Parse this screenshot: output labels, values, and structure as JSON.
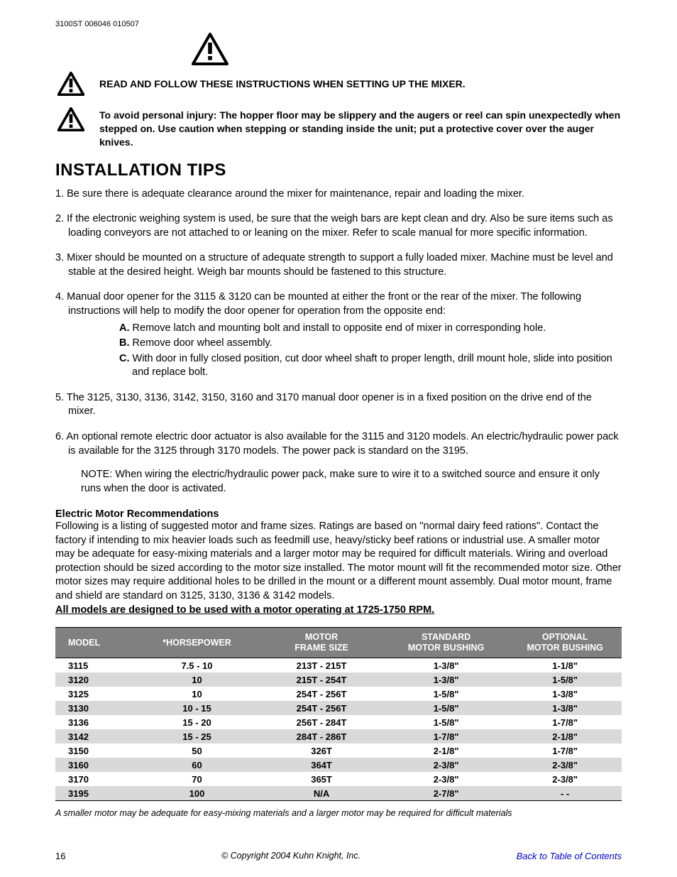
{
  "doc_code": "3100ST 006046 010507",
  "warnings": {
    "line1": "READ AND FOLLOW THESE INSTRUCTIONS WHEN SETTING UP THE MIXER.",
    "line2": "To avoid personal injury: The hopper floor may be slippery and the augers or reel can spin unexpectedly when stepped on. Use caution when stepping or standing inside the unit; put a protective cover over the auger knives."
  },
  "section_title": "INSTALLATION  TIPS",
  "tips": {
    "t1": "1. Be sure there is adequate clearance around the mixer for maintenance, repair and loading the mixer.",
    "t2": "2. If the electronic weighing system is used, be sure that the weigh bars are kept clean and dry. Also be   sure items such as loading conveyors are not attached to or leaning on the mixer. Refer to      scale manual for more specific information.",
    "t3": "3. Mixer should be mounted on a structure of adequate strength to support a fully loaded mixer. Machine must be level and stable at the desired height. Weigh bar mounts should be fastened to this structure.",
    "t4": "4. Manual door opener for the 3115 & 3120 can be mounted at either the front or the rear of  the mixer. The following instructions will help to modify the door opener for operation from the  opposite end:",
    "t4a_label": "A.",
    "t4a": " Remove latch and mounting bolt and install to opposite end of mixer in corresponding hole.",
    "t4b_label": "B.",
    "t4b": " Remove door wheel assembly.",
    "t4c_label": "C.",
    "t4c": " With door in fully closed position, cut door wheel shaft to proper length, drill mount hole, slide into position and replace bolt.",
    "t5": "5. The 3125, 3130, 3136, 3142, 3150, 3160 and 3170 manual door opener is in a fixed position on the drive end of the mixer.",
    "t6": "6. An optional remote electric door actuator is also available for the 3115 and 3120 models. An electric/hydraulic power pack is available for the 3125 through 3170 models. The power pack is standard on the 3195.",
    "t6_note": "NOTE: When wiring the electric/hydraulic power pack, make sure to wire it to a switched source and ensure it only runs when the door is activated."
  },
  "emr": {
    "title": "Electric Motor Recommendations",
    "body": "Following is a listing of suggested motor and frame sizes. Ratings are based on \"normal dairy feed rations\". Contact the factory if intending to mix heavier loads such as feedmill use, heavy/sticky beef rations or industrial use.  A smaller motor may be adequate for easy-mixing materials and a larger motor may be required for difficult materials. Wiring and overload protection should be sized according to the motor size installed. The motor mount will fit the recommended motor size. Other motor sizes may require additional holes to be drilled in the mount or a different mount assembly. Dual motor mount, frame and shield are standard on 3125, 3130, 3136 & 3142 models.",
    "underline": "All models are designed to be used with a motor operating at 1725-1750 RPM."
  },
  "table": {
    "header_bg": "#808080",
    "row_even_bg": "#ffffff",
    "row_odd_bg": "#d9d9d9",
    "border_color": "#000000",
    "columns": [
      "MODEL",
      "*HORSEPOWER",
      "MOTOR\nFRAME SIZE",
      "STANDARD\nMOTOR BUSHING",
      "OPTIONAL\nMOTOR BUSHING"
    ],
    "rows": [
      [
        "3115",
        "7.5 - 10",
        "213T - 215T",
        "1-3/8\"",
        "1-1/8\""
      ],
      [
        "3120",
        "10",
        "215T - 254T",
        "1-3/8\"",
        "1-5/8\""
      ],
      [
        "3125",
        "10",
        "254T - 256T",
        "1-5/8\"",
        "1-3/8\""
      ],
      [
        "3130",
        "10 - 15",
        "254T - 256T",
        "1-5/8\"",
        "1-3/8\""
      ],
      [
        "3136",
        "15 - 20",
        "256T - 284T",
        "1-5/8\"",
        "1-7/8\""
      ],
      [
        "3142",
        "15 - 25",
        "284T - 286T",
        "1-7/8\"",
        "2-1/8\""
      ],
      [
        "3150",
        "50",
        "326T",
        "2-1/8\"",
        "1-7/8\""
      ],
      [
        "3160",
        "60",
        "364T",
        "2-3/8\"",
        "2-3/8\""
      ],
      [
        "3170",
        "70",
        "365T",
        "2-3/8\"",
        "2-3/8\""
      ],
      [
        "3195",
        "100",
        "N/A",
        "2-7/8\"",
        "- -"
      ]
    ],
    "col_widths": [
      "14%",
      "22%",
      "22%",
      "22%",
      "20%"
    ]
  },
  "footnote": "A smaller motor may be adequate for easy-mixing materials and a larger motor may be required for difficult materials",
  "footer": {
    "page": "16",
    "copy": "© Copyright 2004 Kuhn Knight, Inc.",
    "link": "Back to Table of Contents"
  },
  "icon": {
    "stroke": "#000000",
    "size_large": 52,
    "size_small": 38
  }
}
